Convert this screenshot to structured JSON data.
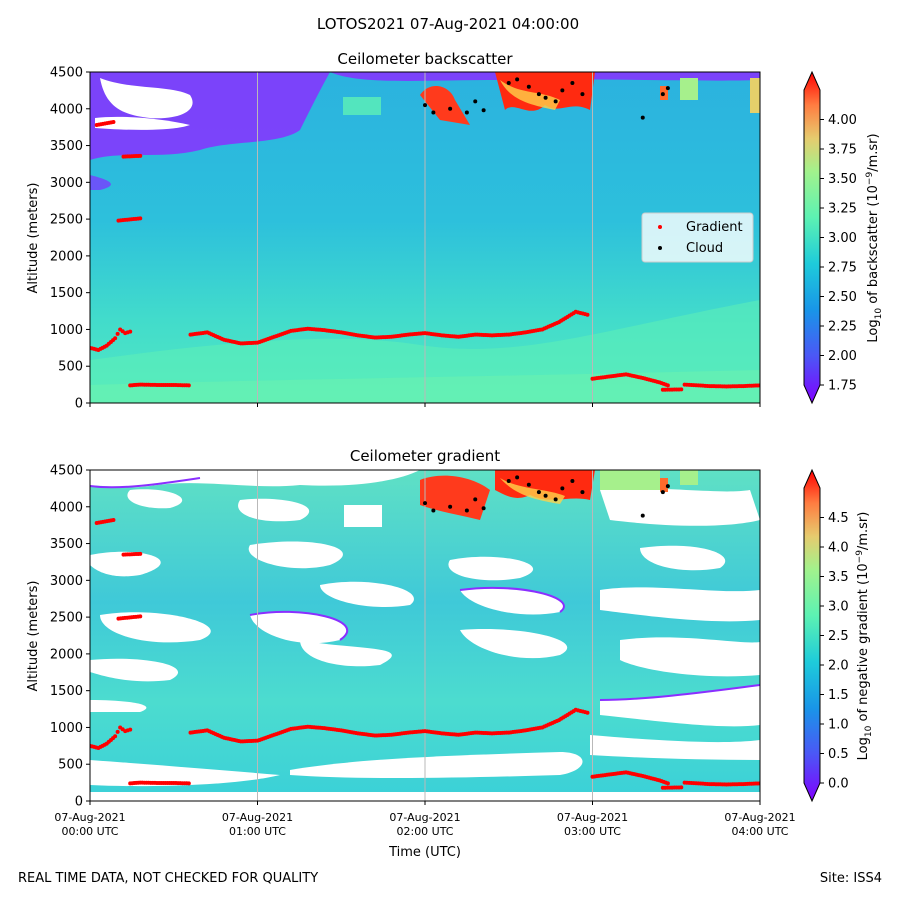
{
  "figure_title": "LOTOS2021 07-Aug-2021 04:00:00",
  "footer": {
    "left": "REAL TIME DATA, NOT CHECKED FOR QUALITY",
    "right": "Site: ISS4"
  },
  "chart_data": [
    {
      "type": "heatmap",
      "title": "Ceilometer backscatter",
      "ylabel": "Altitude (meters)",
      "ylim": [
        0,
        4500
      ],
      "yticks": [
        "0",
        "500",
        "1000",
        "1500",
        "2000",
        "2500",
        "3000",
        "3500",
        "4000",
        "4500"
      ],
      "xlim_hours_utc": [
        0,
        4
      ],
      "xticks": [
        {
          "line1": "07-Aug-2021",
          "line2": "00:00 UTC"
        },
        {
          "line1": "07-Aug-2021",
          "line2": "01:00 UTC"
        },
        {
          "line1": "07-Aug-2021",
          "line2": "02:00 UTC"
        },
        {
          "line1": "07-Aug-2021",
          "line2": "03:00 UTC"
        },
        {
          "line1": "07-Aug-2021",
          "line2": "04:00 UTC"
        }
      ],
      "colorbar": {
        "label": "Log10 of backscatter (10^-9/m.sr)",
        "range": [
          1.75,
          4.25
        ],
        "ticks": [
          "1.75",
          "2.00",
          "2.25",
          "2.50",
          "2.75",
          "3.00",
          "3.25",
          "3.50",
          "3.75",
          "4.00"
        ],
        "colormap": "rainbow"
      },
      "legend": {
        "placement": "center-right",
        "entries": [
          {
            "label": "Gradient",
            "color": "#ff0000"
          },
          {
            "label": "Cloud",
            "color": "#000000"
          }
        ]
      },
      "series": [
        {
          "name": "Gradient",
          "color": "#ff0000",
          "segments": [
            [
              [
                0.0,
                750
              ],
              [
                0.05,
                720
              ],
              [
                0.1,
                780
              ],
              [
                0.15,
                880
              ],
              [
                0.18,
                1000
              ],
              [
                0.21,
                950
              ],
              [
                0.24,
                970
              ]
            ],
            [
              [
                0.24,
                240
              ],
              [
                0.3,
                250
              ],
              [
                0.4,
                245
              ],
              [
                0.5,
                245
              ],
              [
                0.59,
                240
              ]
            ],
            [
              [
                0.6,
                930
              ],
              [
                0.7,
                960
              ],
              [
                0.8,
                860
              ],
              [
                0.9,
                810
              ],
              [
                1.0,
                820
              ],
              [
                1.1,
                900
              ],
              [
                1.2,
                980
              ],
              [
                1.3,
                1010
              ],
              [
                1.4,
                990
              ],
              [
                1.5,
                960
              ],
              [
                1.6,
                920
              ],
              [
                1.7,
                890
              ],
              [
                1.8,
                900
              ],
              [
                1.9,
                930
              ],
              [
                2.0,
                950
              ],
              [
                2.1,
                920
              ],
              [
                2.2,
                900
              ],
              [
                2.3,
                930
              ],
              [
                2.4,
                920
              ],
              [
                2.5,
                930
              ],
              [
                2.6,
                960
              ],
              [
                2.7,
                1000
              ],
              [
                2.8,
                1100
              ],
              [
                2.9,
                1240
              ],
              [
                2.97,
                1200
              ]
            ],
            [
              [
                3.0,
                330
              ],
              [
                3.1,
                360
              ],
              [
                3.2,
                390
              ],
              [
                3.3,
                340
              ],
              [
                3.4,
                280
              ],
              [
                3.45,
                240
              ]
            ],
            [
              [
                3.42,
                180
              ],
              [
                3.53,
                185
              ]
            ],
            [
              [
                3.55,
                250
              ],
              [
                3.7,
                230
              ],
              [
                3.8,
                225
              ],
              [
                3.9,
                230
              ],
              [
                4.0,
                240
              ]
            ],
            [
              [
                0.17,
                2480
              ],
              [
                0.3,
                2510
              ]
            ],
            [
              [
                0.2,
                3350
              ],
              [
                0.3,
                3360
              ]
            ],
            [
              [
                0.04,
                3780
              ],
              [
                0.14,
                3820
              ]
            ]
          ]
        },
        {
          "name": "Cloud",
          "color": "#000000",
          "points": [
            [
              2.0,
              4050
            ],
            [
              2.05,
              3950
            ],
            [
              2.15,
              4000
            ],
            [
              2.25,
              3950
            ],
            [
              2.3,
              4100
            ],
            [
              2.35,
              3980
            ],
            [
              2.5,
              4350
            ],
            [
              2.55,
              4400
            ],
            [
              2.62,
              4300
            ],
            [
              2.68,
              4200
            ],
            [
              2.72,
              4150
            ],
            [
              2.78,
              4100
            ],
            [
              2.82,
              4250
            ],
            [
              2.88,
              4350
            ],
            [
              2.94,
              4200
            ],
            [
              3.3,
              3880
            ],
            [
              3.42,
              4200
            ],
            [
              3.45,
              4280
            ]
          ]
        }
      ]
    },
    {
      "type": "heatmap",
      "title": "Ceilometer gradient",
      "ylabel": "Altitude (meters)",
      "xlabel": "Time (UTC)",
      "ylim": [
        0,
        4500
      ],
      "yticks": [
        "0",
        "500",
        "1000",
        "1500",
        "2000",
        "2500",
        "3000",
        "3500",
        "4000",
        "4500"
      ],
      "xlim_hours_utc": [
        0,
        4
      ],
      "xticks": [
        {
          "line1": "07-Aug-2021",
          "line2": "00:00 UTC"
        },
        {
          "line1": "07-Aug-2021",
          "line2": "01:00 UTC"
        },
        {
          "line1": "07-Aug-2021",
          "line2": "02:00 UTC"
        },
        {
          "line1": "07-Aug-2021",
          "line2": "03:00 UTC"
        },
        {
          "line1": "07-Aug-2021",
          "line2": "04:00 UTC"
        }
      ],
      "colorbar": {
        "label": "Log10 of negative gradient (10^-9/m.sr)",
        "range": [
          0.0,
          5.0
        ],
        "ticks": [
          "0.0",
          "0.5",
          "1.0",
          "1.5",
          "2.0",
          "2.5",
          "3.0",
          "3.5",
          "4.0",
          "4.5"
        ],
        "colormap": "rainbow"
      },
      "series": [
        {
          "name": "Gradient",
          "color": "#ff0000",
          "segments": [
            [
              [
                0.0,
                750
              ],
              [
                0.05,
                720
              ],
              [
                0.1,
                780
              ],
              [
                0.15,
                880
              ],
              [
                0.18,
                1000
              ],
              [
                0.21,
                950
              ],
              [
                0.24,
                970
              ]
            ],
            [
              [
                0.24,
                240
              ],
              [
                0.3,
                250
              ],
              [
                0.4,
                245
              ],
              [
                0.5,
                245
              ],
              [
                0.59,
                240
              ]
            ],
            [
              [
                0.6,
                930
              ],
              [
                0.7,
                960
              ],
              [
                0.8,
                860
              ],
              [
                0.9,
                810
              ],
              [
                1.0,
                820
              ],
              [
                1.1,
                900
              ],
              [
                1.2,
                980
              ],
              [
                1.3,
                1010
              ],
              [
                1.4,
                990
              ],
              [
                1.5,
                960
              ],
              [
                1.6,
                920
              ],
              [
                1.7,
                890
              ],
              [
                1.8,
                900
              ],
              [
                1.9,
                930
              ],
              [
                2.0,
                950
              ],
              [
                2.1,
                920
              ],
              [
                2.2,
                900
              ],
              [
                2.3,
                930
              ],
              [
                2.4,
                920
              ],
              [
                2.5,
                930
              ],
              [
                2.6,
                960
              ],
              [
                2.7,
                1000
              ],
              [
                2.8,
                1100
              ],
              [
                2.9,
                1240
              ],
              [
                2.97,
                1200
              ]
            ],
            [
              [
                3.0,
                330
              ],
              [
                3.1,
                360
              ],
              [
                3.2,
                390
              ],
              [
                3.3,
                340
              ],
              [
                3.4,
                280
              ],
              [
                3.45,
                240
              ]
            ],
            [
              [
                3.42,
                180
              ],
              [
                3.53,
                185
              ]
            ],
            [
              [
                3.55,
                250
              ],
              [
                3.7,
                230
              ],
              [
                3.8,
                225
              ],
              [
                3.9,
                230
              ],
              [
                4.0,
                240
              ]
            ],
            [
              [
                0.17,
                2480
              ],
              [
                0.3,
                2510
              ]
            ],
            [
              [
                0.2,
                3350
              ],
              [
                0.3,
                3360
              ]
            ],
            [
              [
                0.04,
                3780
              ],
              [
                0.14,
                3820
              ]
            ]
          ]
        },
        {
          "name": "Cloud",
          "color": "#000000",
          "points": [
            [
              2.0,
              4050
            ],
            [
              2.05,
              3950
            ],
            [
              2.15,
              4000
            ],
            [
              2.25,
              3950
            ],
            [
              2.3,
              4100
            ],
            [
              2.35,
              3980
            ],
            [
              2.5,
              4350
            ],
            [
              2.55,
              4400
            ],
            [
              2.62,
              4300
            ],
            [
              2.68,
              4200
            ],
            [
              2.72,
              4150
            ],
            [
              2.78,
              4100
            ],
            [
              2.82,
              4250
            ],
            [
              2.88,
              4350
            ],
            [
              2.94,
              4200
            ],
            [
              3.3,
              3880
            ],
            [
              3.42,
              4200
            ],
            [
              3.45,
              4280
            ]
          ]
        }
      ]
    }
  ]
}
